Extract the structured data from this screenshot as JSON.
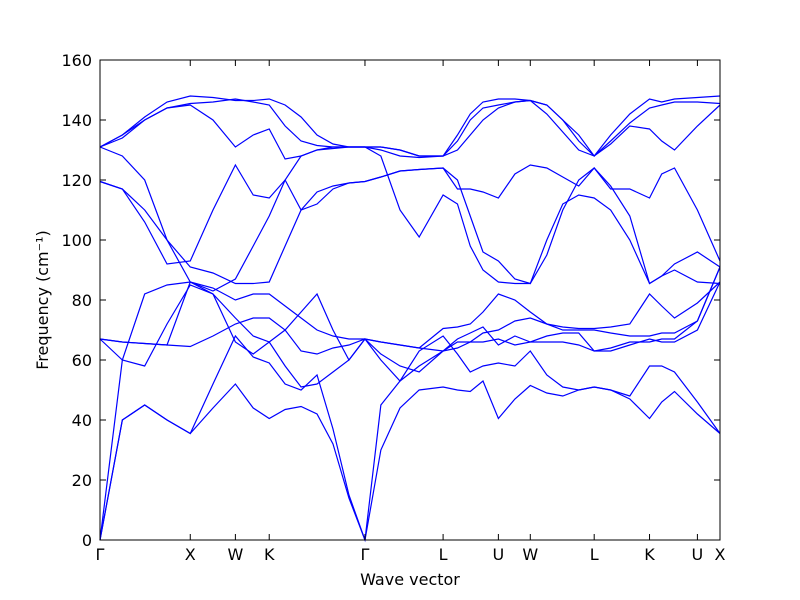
{
  "chart_data": {
    "type": "line",
    "title": "",
    "xlabel": "Wave vector",
    "ylabel": "Frequency (cm⁻¹)",
    "ylim": [
      0,
      160
    ],
    "y_ticks": [
      0,
      20,
      40,
      60,
      80,
      100,
      120,
      140,
      160
    ],
    "grid": false,
    "line_color": "#0000ff",
    "x_ticks": [
      {
        "label": "Γ",
        "x": 0.0
      },
      {
        "label": "X",
        "x": 0.1414
      },
      {
        "label": "W",
        "x": 0.2121
      },
      {
        "label": "K",
        "x": 0.2651
      },
      {
        "label": "Γ",
        "x": 0.4151
      },
      {
        "label": "L",
        "x": 0.5375
      },
      {
        "label": "U",
        "x": 0.6241
      },
      {
        "label": "W",
        "x": 0.6741
      },
      {
        "label": "L",
        "x": 0.7742
      },
      {
        "label": "K",
        "x": 0.8609
      },
      {
        "label": "U",
        "x": 0.9359
      },
      {
        "label": "X",
        "x": 0.9713
      }
    ],
    "xlim": [
      0,
      0.9713
    ],
    "series": [
      {
        "x": [
          0.0,
          0.035,
          0.07,
          0.105,
          0.1414,
          0.177,
          0.2121,
          0.24,
          0.2651,
          0.29,
          0.315,
          0.34,
          0.365,
          0.39,
          0.4151,
          0.44,
          0.47,
          0.5,
          0.5375,
          0.56,
          0.58,
          0.6,
          0.6241,
          0.65,
          0.6741,
          0.7,
          0.725,
          0.75,
          0.7742,
          0.8,
          0.83,
          0.8609,
          0.88,
          0.9,
          0.9359,
          0.9713
        ],
        "y": [
          0,
          40,
          45,
          40,
          35.5,
          44,
          52,
          44,
          40.5,
          43.5,
          44.5,
          42,
          32,
          14,
          0,
          30,
          44,
          50,
          51,
          50,
          49.5,
          53,
          40.5,
          47,
          51.5,
          49,
          48,
          50,
          51,
          50,
          47,
          40.5,
          46,
          49.5,
          42,
          35.5
        ]
      },
      {
        "x": [
          0.0,
          0.035,
          0.07,
          0.105,
          0.1414,
          0.177,
          0.2121,
          0.24,
          0.2651,
          0.29,
          0.315,
          0.34,
          0.365,
          0.39,
          0.4151,
          0.44,
          0.47,
          0.5,
          0.5375,
          0.56,
          0.58,
          0.6,
          0.6241,
          0.65,
          0.6741,
          0.7,
          0.725,
          0.75,
          0.7742,
          0.8,
          0.83,
          0.8609,
          0.88,
          0.9,
          0.9359,
          0.9713
        ],
        "y": [
          0,
          40,
          45,
          40,
          35.5,
          52,
          68,
          61,
          59,
          52,
          50,
          55,
          37,
          15,
          0,
          45,
          53,
          63,
          68,
          62,
          56,
          58,
          59,
          58,
          63,
          55,
          51,
          50,
          51,
          50,
          48,
          58,
          58,
          56,
          46,
          35.5
        ]
      },
      {
        "x": [
          0.0,
          0.035,
          0.07,
          0.105,
          0.1414,
          0.177,
          0.2121,
          0.24,
          0.2651,
          0.29,
          0.315,
          0.34,
          0.365,
          0.39,
          0.4151,
          0.44,
          0.47,
          0.5,
          0.5375,
          0.56,
          0.58,
          0.6,
          0.6241,
          0.65,
          0.6741,
          0.7,
          0.725,
          0.75,
          0.7742,
          0.8,
          0.83,
          0.8609,
          0.88,
          0.9,
          0.9359,
          0.9713
        ],
        "y": [
          0,
          60,
          82,
          85,
          86,
          82,
          74,
          68,
          66,
          58,
          51,
          52,
          56,
          60,
          67,
          60,
          53,
          58,
          63,
          67,
          69,
          71,
          65,
          68,
          66,
          68,
          69,
          69,
          63,
          63,
          65,
          67,
          66,
          66,
          70,
          86
        ]
      },
      {
        "x": [
          0.0,
          0.035,
          0.07,
          0.105,
          0.1414,
          0.177,
          0.2121,
          0.24,
          0.2651,
          0.29,
          0.315,
          0.34,
          0.365,
          0.39,
          0.4151,
          0.44,
          0.47,
          0.5,
          0.5375,
          0.56,
          0.58,
          0.6,
          0.6241,
          0.65,
          0.6741,
          0.7,
          0.725,
          0.75,
          0.7742,
          0.8,
          0.83,
          0.8609,
          0.88,
          0.9,
          0.9359,
          0.9713
        ],
        "y": [
          67,
          60,
          58,
          72,
          85,
          82,
          66,
          62,
          66,
          70,
          76,
          82,
          70,
          60,
          67,
          62,
          58,
          56,
          63,
          66,
          66,
          66,
          67,
          65,
          66,
          66,
          66,
          65,
          63,
          64,
          66,
          66,
          67,
          67,
          73,
          91
        ]
      },
      {
        "x": [
          0.0,
          0.035,
          0.07,
          0.105,
          0.1414,
          0.177,
          0.2121,
          0.24,
          0.2651,
          0.29,
          0.315,
          0.34,
          0.365,
          0.39,
          0.4151,
          0.44,
          0.47,
          0.5,
          0.5375,
          0.56,
          0.58,
          0.6,
          0.6241,
          0.65,
          0.6741,
          0.7,
          0.725,
          0.75,
          0.7742,
          0.8,
          0.83,
          0.8609,
          0.88,
          0.9,
          0.9359,
          0.9713
        ],
        "y": [
          67,
          66,
          65.5,
          65,
          64.5,
          68,
          72,
          74,
          74,
          70,
          63,
          62,
          64,
          65,
          67,
          66,
          65,
          64,
          63,
          64,
          66,
          69,
          70,
          73,
          74,
          72,
          70,
          70,
          70,
          69,
          68,
          68,
          69,
          69,
          73,
          91
        ]
      },
      {
        "x": [
          0.0,
          0.035,
          0.07,
          0.105,
          0.1414,
          0.177,
          0.2121,
          0.24,
          0.2651,
          0.29,
          0.315,
          0.34,
          0.365,
          0.39,
          0.4151,
          0.44,
          0.47,
          0.5,
          0.5375,
          0.56,
          0.58,
          0.6,
          0.6241,
          0.65,
          0.6741,
          0.7,
          0.725,
          0.75,
          0.7742,
          0.8,
          0.83,
          0.8609,
          0.88,
          0.9,
          0.9359,
          0.9713
        ],
        "y": [
          67,
          66,
          65.5,
          65,
          86,
          84,
          80,
          82,
          82,
          78,
          74,
          70,
          68,
          67,
          67,
          66,
          65,
          64,
          70.5,
          71,
          72,
          76,
          82,
          80,
          76,
          72,
          71,
          70.5,
          70.5,
          71,
          72,
          82,
          78,
          74,
          79,
          86
        ]
      },
      {
        "x": [
          0.0,
          0.035,
          0.07,
          0.105,
          0.1414,
          0.177,
          0.2121,
          0.24,
          0.2651,
          0.29,
          0.315,
          0.34,
          0.365,
          0.39,
          0.4151,
          0.44,
          0.47,
          0.5,
          0.5375,
          0.56,
          0.58,
          0.6,
          0.6241,
          0.65,
          0.6741,
          0.7,
          0.725,
          0.75,
          0.7742,
          0.8,
          0.83,
          0.8609,
          0.88,
          0.9,
          0.9359,
          0.9713
        ],
        "y": [
          119.5,
          117,
          110,
          100,
          91,
          89,
          85.5,
          85.5,
          86,
          98,
          110,
          116,
          118,
          119,
          119.5,
          121,
          123,
          123.5,
          124,
          120,
          108,
          96,
          93,
          87,
          85.5,
          95,
          110,
          120,
          124,
          118,
          108,
          85.5,
          88,
          92,
          96,
          91
        ]
      },
      {
        "x": [
          0.0,
          0.035,
          0.07,
          0.105,
          0.1414,
          0.177,
          0.2121,
          0.24,
          0.2651,
          0.29,
          0.315,
          0.34,
          0.365,
          0.39,
          0.4151,
          0.44,
          0.47,
          0.5,
          0.5375,
          0.56,
          0.58,
          0.6,
          0.6241,
          0.65,
          0.6741,
          0.7,
          0.725,
          0.75,
          0.7742,
          0.8,
          0.83,
          0.8609,
          0.88,
          0.9,
          0.9359,
          0.9713
        ],
        "y": [
          119.5,
          117,
          106,
          92,
          93,
          110,
          125,
          115,
          114,
          120,
          110,
          112,
          117,
          119,
          119.5,
          121,
          123,
          123.5,
          124,
          117,
          117,
          116,
          114,
          122,
          125,
          124,
          121,
          118,
          124,
          117,
          117,
          114,
          122,
          124,
          110,
          93
        ]
      },
      {
        "x": [
          0.0,
          0.035,
          0.07,
          0.105,
          0.1414,
          0.177,
          0.2121,
          0.24,
          0.2651,
          0.29,
          0.315,
          0.34,
          0.365,
          0.39,
          0.4151,
          0.44,
          0.47,
          0.5,
          0.5375,
          0.56,
          0.58,
          0.6,
          0.6241,
          0.65,
          0.6741,
          0.7,
          0.725,
          0.75,
          0.7742,
          0.8,
          0.83,
          0.8609,
          0.88,
          0.9,
          0.9359,
          0.9713
        ],
        "y": [
          131,
          128,
          120,
          100,
          86,
          83,
          87,
          98,
          108,
          120,
          128,
          130,
          131,
          131,
          131,
          128,
          110,
          101,
          115,
          112,
          98,
          90,
          86,
          85.5,
          85.5,
          100,
          112,
          115,
          114,
          110,
          100,
          85.5,
          88,
          90,
          86,
          85.5
        ]
      },
      {
        "x": [
          0.0,
          0.035,
          0.07,
          0.105,
          0.1414,
          0.177,
          0.2121,
          0.24,
          0.2651,
          0.29,
          0.315,
          0.34,
          0.365,
          0.39,
          0.4151,
          0.44,
          0.47,
          0.5,
          0.5375,
          0.56,
          0.58,
          0.6,
          0.6241,
          0.65,
          0.6741,
          0.7,
          0.725,
          0.75,
          0.7742,
          0.8,
          0.83,
          0.8609,
          0.88,
          0.9,
          0.9359,
          0.9713
        ],
        "y": [
          131,
          134,
          140,
          144,
          145,
          140,
          131,
          135,
          137,
          127,
          128,
          130,
          130.5,
          131,
          131,
          131,
          130,
          128,
          128,
          130,
          135,
          140,
          144,
          146,
          146.5,
          142,
          136,
          130,
          128,
          132,
          138,
          137,
          133,
          130,
          138,
          145
        ]
      },
      {
        "x": [
          0.0,
          0.035,
          0.07,
          0.105,
          0.1414,
          0.177,
          0.2121,
          0.24,
          0.2651,
          0.29,
          0.315,
          0.34,
          0.365,
          0.39,
          0.4151,
          0.44,
          0.47,
          0.5,
          0.5375,
          0.56,
          0.58,
          0.6,
          0.6241,
          0.65,
          0.6741,
          0.7,
          0.725,
          0.75,
          0.7742,
          0.8,
          0.83,
          0.8609,
          0.88,
          0.9,
          0.9359,
          0.9713
        ],
        "y": [
          131,
          135,
          140,
          144,
          145.5,
          146,
          147,
          146,
          145,
          138,
          133,
          131.5,
          131,
          131,
          131,
          130,
          128,
          127.5,
          128,
          133,
          140,
          144,
          145,
          146,
          146.5,
          145,
          140,
          135,
          128,
          133,
          139,
          144,
          145,
          146,
          146,
          145.5
        ]
      },
      {
        "x": [
          0.0,
          0.035,
          0.07,
          0.105,
          0.1414,
          0.177,
          0.2121,
          0.24,
          0.2651,
          0.29,
          0.315,
          0.34,
          0.365,
          0.39,
          0.4151,
          0.44,
          0.47,
          0.5,
          0.5375,
          0.56,
          0.58,
          0.6,
          0.6241,
          0.65,
          0.6741,
          0.7,
          0.725,
          0.75,
          0.7742,
          0.8,
          0.83,
          0.8609,
          0.88,
          0.9,
          0.9359,
          0.9713
        ],
        "y": [
          131,
          135,
          141,
          146,
          148,
          147.5,
          146.5,
          146.5,
          147,
          145,
          141,
          135,
          132,
          131,
          131,
          131,
          130,
          128,
          128,
          135,
          142,
          146,
          147,
          147,
          146.5,
          145,
          140,
          133,
          128,
          135,
          142,
          147,
          146,
          147,
          147.5,
          148
        ]
      }
    ]
  }
}
